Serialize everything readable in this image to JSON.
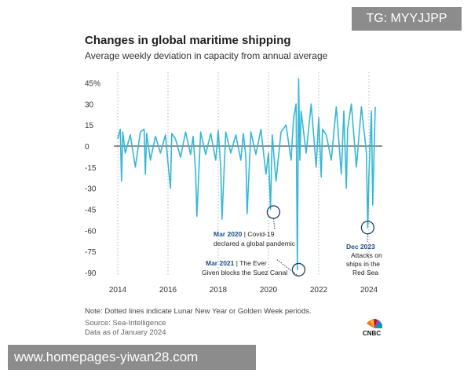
{
  "chart_data": {
    "type": "line",
    "title": "Changes in global maritime shipping",
    "subtitle": "Average weekly deviation in capacity from annual average",
    "xlabel": "",
    "ylabel": "",
    "x_ticks": [
      "2014",
      "2016",
      "2018",
      "2020",
      "2022",
      "2024"
    ],
    "y_ticks": [
      "45%",
      "30",
      "15",
      "0",
      "-15",
      "-30",
      "-45",
      "-60",
      "-75",
      "-90"
    ],
    "ylim": [
      -92,
      47
    ],
    "xlim": [
      2013.8,
      2024.5
    ],
    "grid": "vertical dotted",
    "color": "#35b7d6",
    "series": [
      {
        "x": [
          2014.0,
          2014.1,
          2014.15,
          2014.2,
          2014.3,
          2014.5,
          2014.7,
          2014.9,
          2015.05,
          2015.1,
          2015.15,
          2015.3,
          2015.5,
          2015.7,
          2015.9,
          2016.0,
          2016.1,
          2016.15,
          2016.3,
          2016.5,
          2016.7,
          2016.9,
          2017.0,
          2017.1,
          2017.15,
          2017.3,
          2017.5,
          2017.7,
          2017.9,
          2018.0,
          2018.1,
          2018.15,
          2018.3,
          2018.5,
          2018.7,
          2018.9,
          2019.0,
          2019.1,
          2019.15,
          2019.3,
          2019.5,
          2019.7,
          2019.9,
          2020.0,
          2020.08,
          2020.15,
          2020.3,
          2020.5,
          2020.7,
          2020.9,
          2021.0,
          2021.1,
          2021.15,
          2021.2,
          2021.25,
          2021.3,
          2021.5,
          2021.7,
          2021.9,
          2022.0,
          2022.1,
          2022.15,
          2022.3,
          2022.5,
          2022.7,
          2022.9,
          2023.0,
          2023.1,
          2023.15,
          2023.3,
          2023.5,
          2023.7,
          2023.9,
          2023.95,
          2024.0,
          2024.1,
          2024.15,
          2024.25
        ],
        "y": [
          5,
          12,
          -25,
          10,
          -5,
          8,
          -15,
          10,
          12,
          -20,
          9,
          -10,
          7,
          -5,
          8,
          -12,
          -30,
          9,
          5,
          -8,
          10,
          -6,
          7,
          -18,
          -50,
          10,
          -6,
          9,
          -10,
          11,
          -15,
          -52,
          10,
          -5,
          8,
          -10,
          9,
          -8,
          -48,
          10,
          -6,
          12,
          -20,
          -5,
          -45,
          8,
          -25,
          10,
          15,
          -10,
          20,
          30,
          -88,
          48,
          -10,
          25,
          -5,
          30,
          -15,
          20,
          -22,
          12,
          8,
          -10,
          28,
          -20,
          25,
          -30,
          12,
          30,
          -15,
          28,
          -5,
          -58,
          -20,
          25,
          -42,
          28
        ]
      }
    ],
    "annotations": [
      {
        "date": "Mar 2020",
        "text": "Covid-19 declared a global pandemic",
        "x": 2020.2,
        "y": -47
      },
      {
        "date": "Mar 2021",
        "text": "The Ever Given blocks the Suez Canal",
        "x": 2021.2,
        "y": -88
      },
      {
        "date": "Dec 2023",
        "text": "Attacks on ships in the Red Sea",
        "x": 2023.95,
        "y": -58
      }
    ]
  },
  "note": "Note: Dotted lines indicate Lunar New Year or Golden Week periods.",
  "source": "Source: Sea-Intelligence",
  "as_of": "Data as of January 2024",
  "logo_text": "CNBC",
  "watermark_top": "TG: MYYJJPP",
  "watermark_bottom": "www.homepages-yiwan28.com",
  "ann1_date": "Mar 2020",
  "ann1_rest": " | Covid-19",
  "ann1_line2": "declared a global pandemic",
  "ann2_date": "Mar 2021",
  "ann2_rest": " | The Ever",
  "ann2_line2": "Given blocks the Suez Canal",
  "ann3_date": "Dec 2023",
  "ann3_line2": "Attacks on",
  "ann3_line3": "ships in the",
  "ann3_line4": "Red Sea"
}
